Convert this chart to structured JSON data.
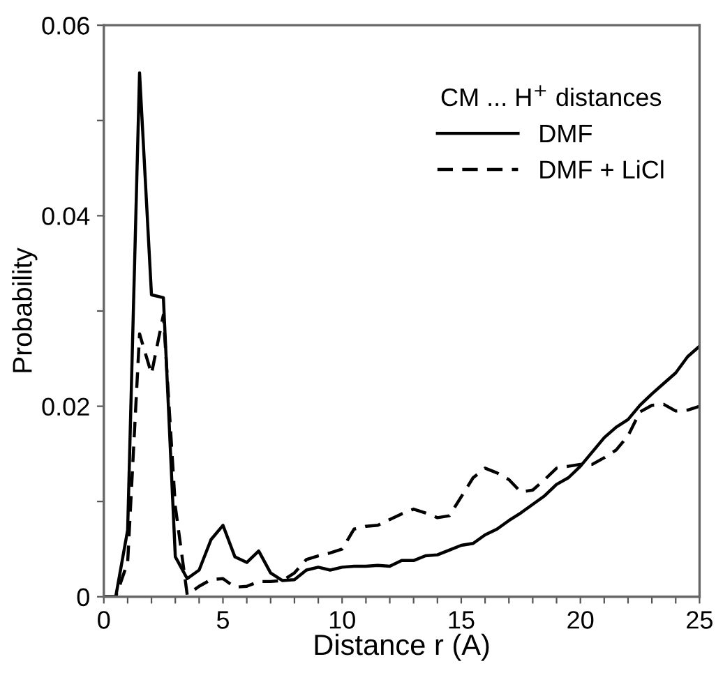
{
  "chart_data": {
    "type": "line",
    "xlabel": "Distance r (A)",
    "ylabel": "Probability",
    "legend_title": "CM ... H$^{+}$ distances",
    "x": [
      0,
      0.5,
      1,
      1.5,
      2,
      2.5,
      3,
      3.5,
      4,
      4.5,
      5,
      5.5,
      6,
      6.5,
      7,
      7.5,
      8,
      8.5,
      9,
      9.5,
      10,
      10.5,
      11,
      11.5,
      12,
      12.5,
      13,
      13.5,
      14,
      14.5,
      15,
      15.5,
      16,
      16.5,
      17,
      17.5,
      18,
      18.5,
      19,
      19.5,
      20,
      20.5,
      21,
      21.5,
      22,
      22.5,
      23,
      23.5,
      24,
      24.5,
      25
    ],
    "series": [
      {
        "name": "DMF",
        "color": "#000000",
        "line_style": "solid",
        "values": [
          0,
          0,
          0.007,
          0.055,
          0.0317,
          0.0314,
          0.0042,
          0.0019,
          0.0028,
          0.006,
          0.0075,
          0.0042,
          0.0036,
          0.0048,
          0.0025,
          0.0017,
          0.0018,
          0.0028,
          0.0031,
          0.0028,
          0.0031,
          0.0032,
          0.0032,
          0.0033,
          0.0032,
          0.0038,
          0.0038,
          0.0043,
          0.0044,
          0.0049,
          0.0054,
          0.0056,
          0.0065,
          0.0071,
          0.008,
          0.0088,
          0.0097,
          0.0106,
          0.0118,
          0.0125,
          0.0137,
          0.0152,
          0.0167,
          0.0178,
          0.0186,
          0.0201,
          0.0213,
          0.0224,
          0.0235,
          0.0252,
          0.0263
        ]
      },
      {
        "name": "DMF + LiCl",
        "color": "#000000",
        "line_style": "dashed",
        "values": [
          0,
          0,
          0.0036,
          0.0276,
          0.0234,
          0.0296,
          0.0095,
          0.0002,
          0.0011,
          0.0018,
          0.0019,
          0.001,
          0.0011,
          0.0016,
          0.0016,
          0.0017,
          0.0025,
          0.0039,
          0.0043,
          0.0046,
          0.005,
          0.0071,
          0.0074,
          0.0075,
          0.0081,
          0.0087,
          0.0092,
          0.0088,
          0.0083,
          0.0085,
          0.0105,
          0.0125,
          0.0135,
          0.013,
          0.0123,
          0.011,
          0.0112,
          0.0123,
          0.0135,
          0.0137,
          0.0139,
          0.0139,
          0.0146,
          0.0154,
          0.0169,
          0.0194,
          0.0201,
          0.0202,
          0.0195,
          0.0196,
          0.02
        ]
      }
    ],
    "xlim": [
      0,
      25
    ],
    "ylim": [
      0,
      0.06
    ],
    "xticks": [
      0,
      {
        "value": 1,
        "label": null
      },
      {
        "value": 2,
        "label": null
      },
      {
        "value": 3,
        "label": null
      },
      {
        "value": 4,
        "label": null
      },
      5,
      {
        "value": 6,
        "label": null
      },
      {
        "value": 7,
        "label": null
      },
      {
        "value": 8,
        "label": null
      },
      {
        "value": 9,
        "label": null
      },
      10,
      {
        "value": 11,
        "label": null
      },
      {
        "value": 12,
        "label": null
      },
      {
        "value": 13,
        "label": null
      },
      {
        "value": 14,
        "label": null
      },
      15,
      {
        "value": 16,
        "label": null
      },
      {
        "value": 17,
        "label": null
      },
      {
        "value": 18,
        "label": null
      },
      {
        "value": 19,
        "label": null
      },
      20,
      {
        "value": 21,
        "label": null
      },
      {
        "value": 22,
        "label": null
      },
      {
        "value": 23,
        "label": null
      },
      {
        "value": 24,
        "label": null
      },
      25
    ],
    "yticks": [
      0,
      {
        "value": 0.01,
        "label": null
      },
      0.02,
      {
        "value": 0.03,
        "label": null
      },
      0.04,
      {
        "value": 0.05,
        "label": null
      },
      0.06
    ],
    "grid": false,
    "legend": "top right",
    "marker": "none"
  }
}
